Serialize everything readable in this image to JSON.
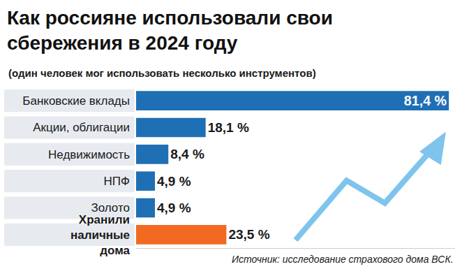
{
  "chart_data": {
    "type": "bar",
    "orientation": "horizontal",
    "title": "Как россияне использовали свои сбережения в 2024 году",
    "subtitle": "(один человек мог использовать несколько инструментов)",
    "categories": [
      "Банковские вклады",
      "Акции, облигации",
      "Недвижимость",
      "НПФ",
      "Золото",
      "Хранили наличные дома"
    ],
    "values": [
      81.4,
      18.1,
      8.4,
      4.9,
      4.9,
      23.5
    ],
    "value_labels": [
      "81,4 %",
      "18,1 %",
      "8,4 %",
      "4,9 %",
      "4,9 %",
      "23,5 %"
    ],
    "colors": [
      "#1f6fb5",
      "#1f6fb5",
      "#1f6fb5",
      "#1f6fb5",
      "#1f6fb5",
      "#f26a21"
    ],
    "data_labels": true,
    "tick_labels": "y",
    "xlim": [
      0,
      83
    ],
    "grid": false,
    "source": "Источник: исследование страхового дома ВСК."
  }
}
